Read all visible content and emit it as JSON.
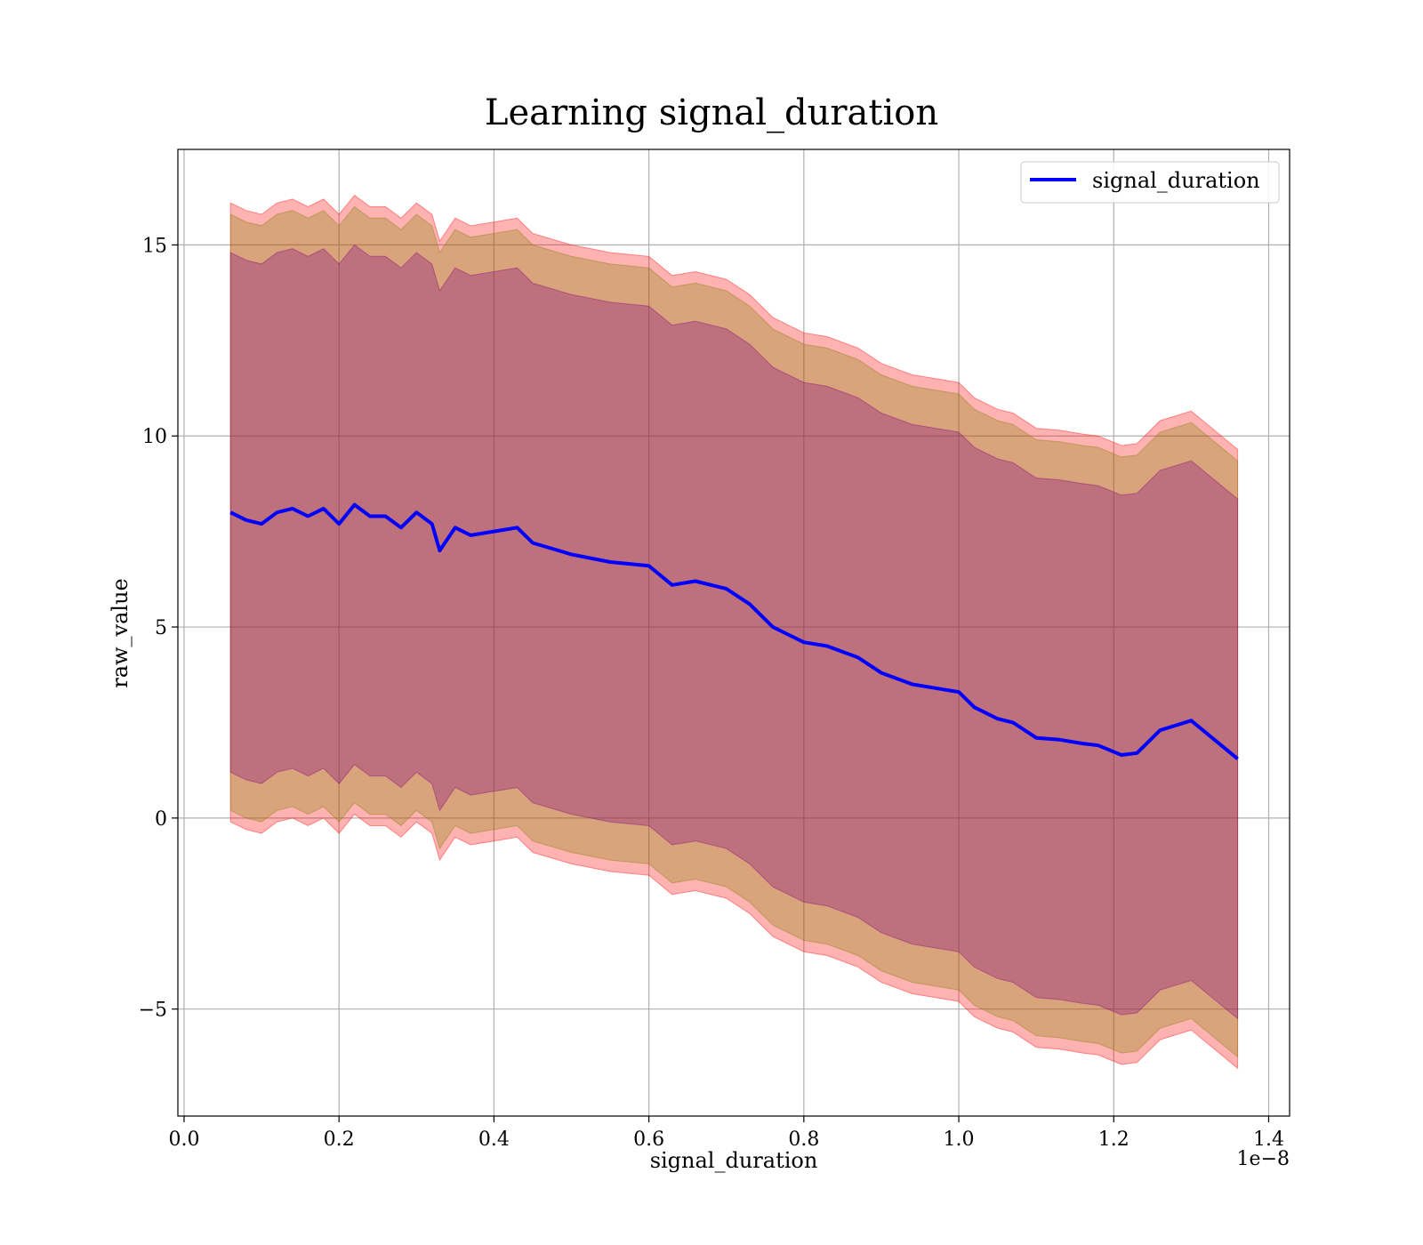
{
  "chart_data": {
    "type": "line",
    "title": "Learning signal_duration",
    "xlabel": "signal_duration",
    "ylabel": "raw_value",
    "x_offset_label": "1e−8",
    "xlim": [
      -0.008,
      1.427
    ],
    "ylim": [
      -7.8,
      17.5
    ],
    "x_ticks": [
      0.0,
      0.2,
      0.4,
      0.6,
      0.8,
      1.0,
      1.2,
      1.4
    ],
    "x_tick_labels": [
      "0.0",
      "0.2",
      "0.4",
      "0.6",
      "0.8",
      "1.0",
      "1.2",
      "1.4"
    ],
    "y_ticks": [
      -5,
      0,
      5,
      10,
      15
    ],
    "y_tick_labels": [
      "−5",
      "0",
      "5",
      "10",
      "15"
    ],
    "grid": true,
    "legend_position": "top-right",
    "series": [
      {
        "name": "signal_duration",
        "color": "#0000ff",
        "x": [
          0.06,
          0.08,
          0.1,
          0.12,
          0.14,
          0.16,
          0.18,
          0.2,
          0.22,
          0.24,
          0.26,
          0.28,
          0.3,
          0.32,
          0.33,
          0.35,
          0.37,
          0.4,
          0.43,
          0.45,
          0.5,
          0.55,
          0.6,
          0.63,
          0.66,
          0.7,
          0.73,
          0.76,
          0.8,
          0.83,
          0.87,
          0.9,
          0.94,
          0.97,
          1.0,
          1.02,
          1.05,
          1.07,
          1.1,
          1.13,
          1.16,
          1.18,
          1.21,
          1.23,
          1.26,
          1.3,
          1.36
        ],
        "y": [
          8.0,
          7.8,
          7.7,
          8.0,
          8.1,
          7.9,
          8.1,
          7.7,
          8.2,
          7.9,
          7.9,
          7.6,
          8.0,
          7.7,
          7.0,
          7.6,
          7.4,
          7.5,
          7.6,
          7.2,
          6.9,
          6.7,
          6.6,
          6.1,
          6.2,
          6.0,
          5.6,
          5.0,
          4.6,
          4.5,
          4.2,
          3.8,
          3.5,
          3.4,
          3.3,
          2.9,
          2.6,
          2.5,
          2.1,
          2.05,
          1.95,
          1.9,
          1.65,
          1.7,
          2.3,
          2.55,
          1.55
        ]
      }
    ],
    "bands": [
      {
        "color": "#ff0000",
        "opacity": 0.3,
        "x": [
          0.06,
          0.08,
          0.1,
          0.12,
          0.14,
          0.16,
          0.18,
          0.2,
          0.22,
          0.24,
          0.26,
          0.28,
          0.3,
          0.32,
          0.33,
          0.35,
          0.37,
          0.4,
          0.43,
          0.45,
          0.5,
          0.55,
          0.6,
          0.63,
          0.66,
          0.7,
          0.73,
          0.76,
          0.8,
          0.83,
          0.87,
          0.9,
          0.94,
          0.97,
          1.0,
          1.02,
          1.05,
          1.07,
          1.1,
          1.13,
          1.16,
          1.18,
          1.21,
          1.23,
          1.26,
          1.3,
          1.36
        ],
        "upper": [
          16.1,
          15.9,
          15.8,
          16.1,
          16.2,
          16.0,
          16.2,
          15.8,
          16.3,
          16.0,
          16.0,
          15.7,
          16.1,
          15.8,
          15.1,
          15.7,
          15.5,
          15.6,
          15.7,
          15.3,
          15.0,
          14.8,
          14.7,
          14.2,
          14.3,
          14.1,
          13.7,
          13.1,
          12.7,
          12.6,
          12.3,
          11.9,
          11.6,
          11.5,
          11.4,
          11.0,
          10.7,
          10.6,
          10.2,
          10.15,
          10.05,
          10.0,
          9.75,
          9.8,
          10.4,
          10.65,
          9.65
        ],
        "lower": [
          -0.1,
          -0.3,
          -0.4,
          -0.1,
          0.0,
          -0.2,
          0.0,
          -0.4,
          0.1,
          -0.2,
          -0.2,
          -0.5,
          -0.1,
          -0.4,
          -1.1,
          -0.5,
          -0.7,
          -0.6,
          -0.5,
          -0.9,
          -1.2,
          -1.4,
          -1.5,
          -2.0,
          -1.9,
          -2.1,
          -2.5,
          -3.1,
          -3.5,
          -3.6,
          -3.9,
          -4.3,
          -4.6,
          -4.7,
          -4.8,
          -5.2,
          -5.5,
          -5.6,
          -6.0,
          -6.05,
          -6.15,
          -6.2,
          -6.45,
          -6.4,
          -5.8,
          -5.55,
          -6.55
        ]
      },
      {
        "color": "#808000",
        "opacity": 0.3,
        "x": [
          0.06,
          0.08,
          0.1,
          0.12,
          0.14,
          0.16,
          0.18,
          0.2,
          0.22,
          0.24,
          0.26,
          0.28,
          0.3,
          0.32,
          0.33,
          0.35,
          0.37,
          0.4,
          0.43,
          0.45,
          0.5,
          0.55,
          0.6,
          0.63,
          0.66,
          0.7,
          0.73,
          0.76,
          0.8,
          0.83,
          0.87,
          0.9,
          0.94,
          0.97,
          1.0,
          1.02,
          1.05,
          1.07,
          1.1,
          1.13,
          1.16,
          1.18,
          1.21,
          1.23,
          1.26,
          1.3,
          1.36
        ],
        "upper": [
          15.8,
          15.6,
          15.5,
          15.8,
          15.9,
          15.7,
          15.9,
          15.5,
          16.0,
          15.7,
          15.7,
          15.4,
          15.8,
          15.5,
          14.8,
          15.4,
          15.2,
          15.3,
          15.4,
          15.0,
          14.7,
          14.5,
          14.4,
          13.9,
          14.0,
          13.8,
          13.4,
          12.8,
          12.4,
          12.3,
          12.0,
          11.6,
          11.3,
          11.2,
          11.1,
          10.7,
          10.4,
          10.3,
          9.9,
          9.85,
          9.75,
          9.7,
          9.45,
          9.5,
          10.1,
          10.35,
          9.35
        ],
        "lower": [
          0.2,
          0.0,
          -0.1,
          0.2,
          0.3,
          0.1,
          0.3,
          -0.1,
          0.4,
          0.1,
          0.1,
          -0.2,
          0.2,
          -0.1,
          -0.8,
          -0.2,
          -0.4,
          -0.3,
          -0.2,
          -0.6,
          -0.9,
          -1.1,
          -1.2,
          -1.7,
          -1.6,
          -1.8,
          -2.2,
          -2.8,
          -3.2,
          -3.3,
          -3.6,
          -4.0,
          -4.3,
          -4.4,
          -4.5,
          -4.9,
          -5.2,
          -5.3,
          -5.7,
          -5.75,
          -5.85,
          -5.9,
          -6.15,
          -6.1,
          -5.5,
          -5.25,
          -6.25
        ]
      },
      {
        "color": "#800080",
        "opacity": 0.3,
        "x": [
          0.06,
          0.08,
          0.1,
          0.12,
          0.14,
          0.16,
          0.18,
          0.2,
          0.22,
          0.24,
          0.26,
          0.28,
          0.3,
          0.32,
          0.33,
          0.35,
          0.37,
          0.4,
          0.43,
          0.45,
          0.5,
          0.55,
          0.6,
          0.63,
          0.66,
          0.7,
          0.73,
          0.76,
          0.8,
          0.83,
          0.87,
          0.9,
          0.94,
          0.97,
          1.0,
          1.02,
          1.05,
          1.07,
          1.1,
          1.13,
          1.16,
          1.18,
          1.21,
          1.23,
          1.26,
          1.3,
          1.36
        ],
        "upper": [
          14.8,
          14.6,
          14.5,
          14.8,
          14.9,
          14.7,
          14.9,
          14.5,
          15.0,
          14.7,
          14.7,
          14.4,
          14.8,
          14.5,
          13.8,
          14.4,
          14.2,
          14.3,
          14.4,
          14.0,
          13.7,
          13.5,
          13.4,
          12.9,
          13.0,
          12.8,
          12.4,
          11.8,
          11.4,
          11.3,
          11.0,
          10.6,
          10.3,
          10.2,
          10.1,
          9.7,
          9.4,
          9.3,
          8.9,
          8.85,
          8.75,
          8.7,
          8.45,
          8.5,
          9.1,
          9.35,
          8.35
        ],
        "lower": [
          1.2,
          1.0,
          0.9,
          1.2,
          1.3,
          1.1,
          1.3,
          0.9,
          1.4,
          1.1,
          1.1,
          0.8,
          1.2,
          0.9,
          0.2,
          0.8,
          0.6,
          0.7,
          0.8,
          0.4,
          0.1,
          -0.1,
          -0.2,
          -0.7,
          -0.6,
          -0.8,
          -1.2,
          -1.8,
          -2.2,
          -2.3,
          -2.6,
          -3.0,
          -3.3,
          -3.4,
          -3.5,
          -3.9,
          -4.2,
          -4.3,
          -4.7,
          -4.75,
          -4.85,
          -4.9,
          -5.15,
          -5.1,
          -4.5,
          -4.25,
          -5.25
        ]
      }
    ]
  }
}
